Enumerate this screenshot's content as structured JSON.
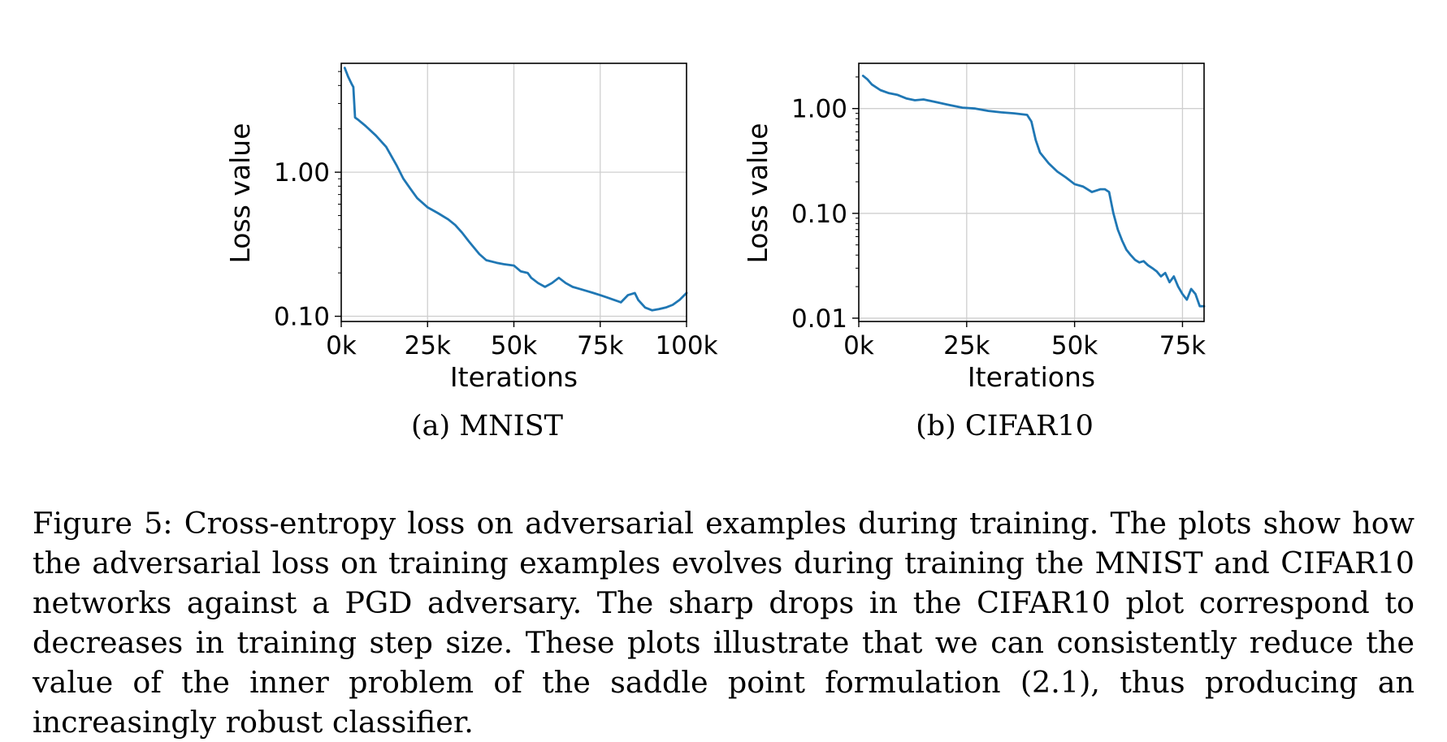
{
  "chart_data": [
    {
      "type": "line",
      "subcaption": "(a) MNIST",
      "xlabel": "Iterations",
      "ylabel": "Loss value",
      "yscale": "log",
      "xlim": [
        0,
        100000
      ],
      "ylim": [
        0.092,
        5.7
      ],
      "xticks": [
        0,
        25000,
        50000,
        75000,
        100000
      ],
      "xtick_labels": [
        "0k",
        "25k",
        "50k",
        "75k",
        "100k"
      ],
      "yticks": [
        0.1,
        1.0
      ],
      "ytick_labels": [
        "0.10",
        "1.00"
      ],
      "grid": true,
      "color": "#1f77b4",
      "series": [
        {
          "name": "MNIST loss",
          "x": [
            1000,
            2000,
            3000,
            3500,
            4000,
            5000,
            7000,
            10000,
            13000,
            16000,
            18000,
            20000,
            22000,
            25000,
            28000,
            31000,
            33000,
            35000,
            37000,
            40000,
            42000,
            45000,
            47000,
            50000,
            52000,
            54000,
            55000,
            57000,
            59000,
            61000,
            63000,
            65000,
            67000,
            69000,
            71000,
            73000,
            75000,
            77000,
            79000,
            81000,
            83000,
            85000,
            86000,
            88000,
            90000,
            92000,
            94000,
            96000,
            98000,
            100000
          ],
          "y": [
            5.3,
            4.6,
            4.1,
            3.9,
            2.4,
            2.3,
            2.1,
            1.8,
            1.5,
            1.12,
            0.9,
            0.77,
            0.66,
            0.57,
            0.52,
            0.47,
            0.43,
            0.38,
            0.33,
            0.27,
            0.245,
            0.235,
            0.23,
            0.225,
            0.205,
            0.2,
            0.185,
            0.17,
            0.16,
            0.17,
            0.185,
            0.17,
            0.16,
            0.155,
            0.15,
            0.145,
            0.14,
            0.135,
            0.13,
            0.125,
            0.14,
            0.145,
            0.13,
            0.115,
            0.11,
            0.112,
            0.115,
            0.12,
            0.13,
            0.145
          ]
        }
      ]
    },
    {
      "type": "line",
      "subcaption": "(b) CIFAR10",
      "xlabel": "Iterations",
      "ylabel": "Loss value",
      "yscale": "log",
      "xlim": [
        0,
        80000
      ],
      "ylim": [
        0.0093,
        2.7
      ],
      "xticks": [
        0,
        25000,
        50000,
        75000
      ],
      "xtick_labels": [
        "0k",
        "25k",
        "50k",
        "75k"
      ],
      "yticks": [
        0.01,
        0.1,
        1.0
      ],
      "ytick_labels": [
        "0.01",
        "0.10",
        "1.00"
      ],
      "grid": true,
      "color": "#1f77b4",
      "series": [
        {
          "name": "CIFAR10 loss",
          "x": [
            1000,
            2000,
            3000,
            5000,
            7000,
            9000,
            11000,
            13000,
            15000,
            18000,
            21000,
            24000,
            27000,
            30000,
            33000,
            36000,
            39000,
            40000,
            41000,
            42000,
            44000,
            46000,
            48000,
            50000,
            52000,
            54000,
            56000,
            57000,
            58000,
            59000,
            60000,
            61000,
            62000,
            63000,
            64000,
            65000,
            66000,
            67000,
            68000,
            69000,
            70000,
            71000,
            72000,
            73000,
            74000,
            75000,
            76000,
            77000,
            78000,
            79000,
            80000
          ],
          "y": [
            2.05,
            1.9,
            1.7,
            1.5,
            1.4,
            1.35,
            1.25,
            1.2,
            1.22,
            1.15,
            1.08,
            1.02,
            1.0,
            0.95,
            0.92,
            0.9,
            0.87,
            0.75,
            0.5,
            0.38,
            0.3,
            0.25,
            0.22,
            0.19,
            0.18,
            0.16,
            0.17,
            0.17,
            0.16,
            0.1,
            0.07,
            0.055,
            0.045,
            0.04,
            0.036,
            0.034,
            0.035,
            0.032,
            0.03,
            0.028,
            0.025,
            0.027,
            0.022,
            0.025,
            0.02,
            0.017,
            0.015,
            0.019,
            0.017,
            0.013,
            0.013
          ]
        }
      ]
    }
  ],
  "caption": "Figure 5: Cross-entropy loss on adversarial examples during training. The plots show how the adversarial loss on training examples evolves during training the MNIST and CIFAR10 networks against a PGD adversary. The sharp drops in the CIFAR10 plot correspond to decreases in training step size. These plots illustrate that we can consistently reduce the value of the inner problem of the saddle point formulation (2.1), thus producing an increasingly robust classifier."
}
